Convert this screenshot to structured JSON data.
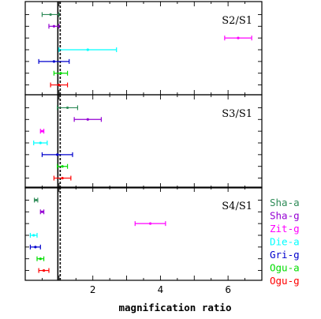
{
  "chart_data": {
    "type": "scatter",
    "xlabel": "magnification ratio",
    "xlim": [
      0,
      7
    ],
    "xticks": [
      2,
      4,
      6
    ],
    "grid": false,
    "legend_placement": "right",
    "reference_line": {
      "x": 1,
      "style": "dashed"
    },
    "panels": [
      {
        "label": "S2/S1",
        "series": [
          {
            "name": "Sha-a",
            "color": "#2e8b57",
            "x": 0.75,
            "xerr": 0.25
          },
          {
            "name": "Sha-g",
            "color": "#9400d3",
            "x": 0.85,
            "xerr": 0.15
          },
          {
            "name": "Zit-g",
            "color": "#ff00ff",
            "x": 6.3,
            "xerr": 0.4
          },
          {
            "name": "Die-a",
            "color": "#00ffff",
            "x": 1.85,
            "xerr": 0.85
          },
          {
            "name": "Gri-g",
            "color": "#0000cd",
            "x": 0.85,
            "xerr": 0.45
          },
          {
            "name": "Ogu-a",
            "color": "#00dd00",
            "x": 1.05,
            "xerr": 0.2
          },
          {
            "name": "Ogu-g",
            "color": "#ff0000",
            "x": 1.0,
            "xerr": 0.25
          }
        ]
      },
      {
        "label": "S3/S1",
        "series": [
          {
            "name": "Sha-a",
            "color": "#2e8b57",
            "x": 1.25,
            "xerr": 0.3
          },
          {
            "name": "Sha-g",
            "color": "#9400d3",
            "x": 1.85,
            "xerr": 0.4
          },
          {
            "name": "Zit-g",
            "color": "#ff00ff",
            "x": 0.5,
            "xerr": 0.05
          },
          {
            "name": "Die-a",
            "color": "#00ffff",
            "x": 0.45,
            "xerr": 0.2
          },
          {
            "name": "Gri-g",
            "color": "#0000cd",
            "x": 0.95,
            "xerr": 0.45
          },
          {
            "name": "Ogu-a",
            "color": "#00dd00",
            "x": 1.1,
            "xerr": 0.15
          },
          {
            "name": "Ogu-g",
            "color": "#ff0000",
            "x": 1.1,
            "xerr": 0.25
          }
        ]
      },
      {
        "label": "S4/S1",
        "series": [
          {
            "name": "Sha-a",
            "color": "#2e8b57",
            "x": 0.32,
            "xerr": 0.05
          },
          {
            "name": "Sha-g",
            "color": "#9400d3",
            "x": 0.5,
            "xerr": 0.05
          },
          {
            "name": "Zit-g",
            "color": "#ff00ff",
            "x": 3.7,
            "xerr": 0.45
          },
          {
            "name": "Die-a",
            "color": "#00ffff",
            "x": 0.25,
            "xerr": 0.1
          },
          {
            "name": "Gri-g",
            "color": "#0000cd",
            "x": 0.3,
            "xerr": 0.15
          },
          {
            "name": "Ogu-a",
            "color": "#00dd00",
            "x": 0.45,
            "xerr": 0.1
          },
          {
            "name": "Ogu-g",
            "color": "#ff0000",
            "x": 0.55,
            "xerr": 0.15
          }
        ]
      }
    ]
  },
  "legend": [
    {
      "label": "Sha-a",
      "color": "#2e8b57"
    },
    {
      "label": "Sha-g",
      "color": "#9400d3"
    },
    {
      "label": "Zit-g",
      "color": "#ff00ff"
    },
    {
      "label": "Die-a",
      "color": "#00ffff"
    },
    {
      "label": "Gri-g",
      "color": "#0000cd"
    },
    {
      "label": "Ogu-a",
      "color": "#00dd00"
    },
    {
      "label": "Ogu-g",
      "color": "#ff0000"
    }
  ]
}
